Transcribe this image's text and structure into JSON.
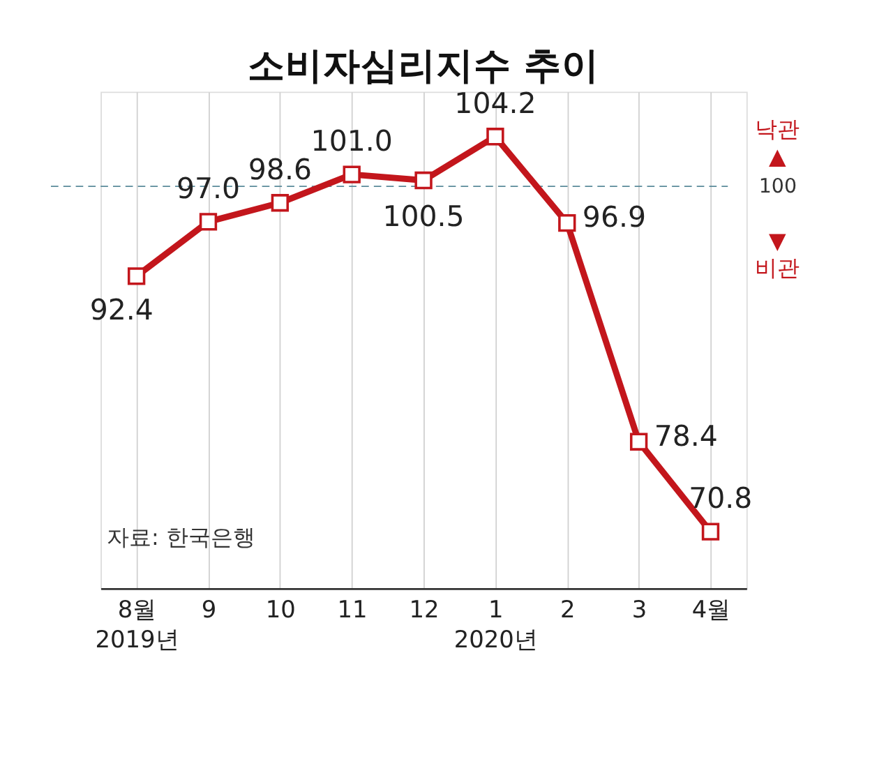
{
  "chart_data": {
    "type": "line",
    "title": "소비자심리지수 추이",
    "categories": [
      "8월\n2019년",
      "9",
      "10",
      "11",
      "12",
      "1\n2020년",
      "2",
      "3",
      "4월"
    ],
    "series": [
      {
        "color": "#c3161c",
        "values": [
          92.4,
          97.0,
          98.6,
          101.0,
          100.5,
          104.2,
          96.9,
          78.4,
          70.8
        ],
        "value_labels": [
          "92.4",
          "97.0",
          "98.6",
          "101.0",
          "100.5",
          "104.2",
          "96.9",
          "78.4",
          "70.8"
        ]
      }
    ],
    "marker": "square",
    "line_style": "solid",
    "grid": "x",
    "tick_labels": "x",
    "ylim": [
      66,
      108
    ],
    "ref_lines": [
      {
        "axis": "y",
        "value": 100,
        "label": "100",
        "color": "#5a8a9a",
        "line_style": "dashed"
      }
    ],
    "annotations": [
      "낙관\n▲",
      "▼\n비관",
      "자료: 한국은행"
    ]
  }
}
